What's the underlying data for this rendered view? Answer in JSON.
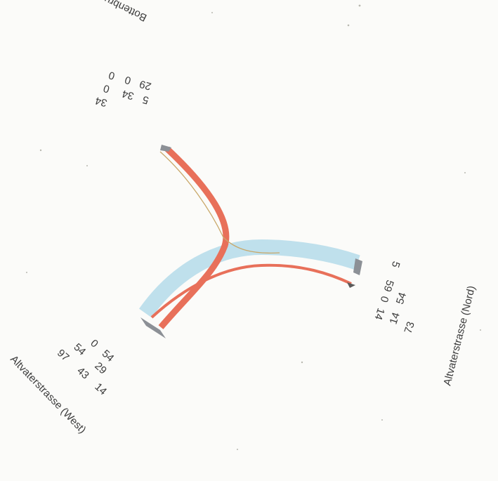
{
  "diagram": {
    "type": "traffic-flow-junction",
    "colors": {
      "flow_primary": "#e8705a",
      "flow_secondary": "#bfe0ec",
      "flow_thin": "#c9a86a",
      "text": "#3c3c3c",
      "background": "#fbfbf9"
    },
    "arms": [
      {
        "id": "west",
        "label": "Altvaterstrasse (West)",
        "rows": [
          [
            "0",
            "54"
          ],
          [
            "54",
            "29"
          ],
          [
            "97",
            "43",
            "14"
          ]
        ]
      },
      {
        "id": "nord",
        "label": "Altvaterstrasse (Nord)",
        "rows": [
          [
            "5",
            "54"
          ],
          [
            "0",
            "59"
          ],
          [
            "14",
            "14",
            "73"
          ]
        ]
      },
      {
        "id": "bottenbrunnen",
        "label": "Bottenbrunnenstrasse",
        "rows": [
          [
            "34"
          ],
          [
            "0",
            "34",
            "5"
          ],
          [
            "0",
            "0",
            "29"
          ]
        ]
      }
    ]
  }
}
